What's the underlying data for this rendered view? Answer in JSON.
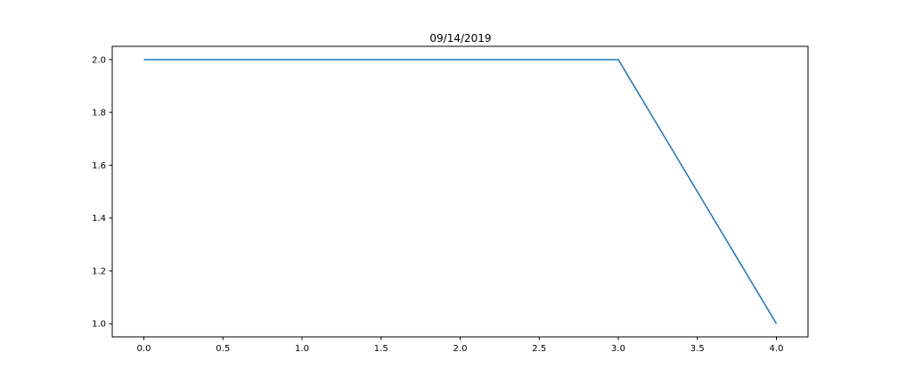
{
  "chart_data": {
    "type": "line",
    "title": "09/14/2019",
    "xlabel": "",
    "ylabel": "",
    "x": [
      0,
      1,
      2,
      3,
      4
    ],
    "series": [
      {
        "values": [
          2.0,
          2.0,
          2.0,
          2.0,
          1.0
        ],
        "color": "#1f77b4"
      }
    ],
    "xlim": [
      -0.2,
      4.2
    ],
    "ylim": [
      0.95,
      2.05
    ],
    "xticks": [
      "0.0",
      "0.5",
      "1.0",
      "1.5",
      "2.0",
      "2.5",
      "3.0",
      "3.5",
      "4.0"
    ],
    "yticks": [
      "1.0",
      "1.2",
      "1.4",
      "1.6",
      "1.8",
      "2.0"
    ],
    "grid": false,
    "legend": "none"
  }
}
